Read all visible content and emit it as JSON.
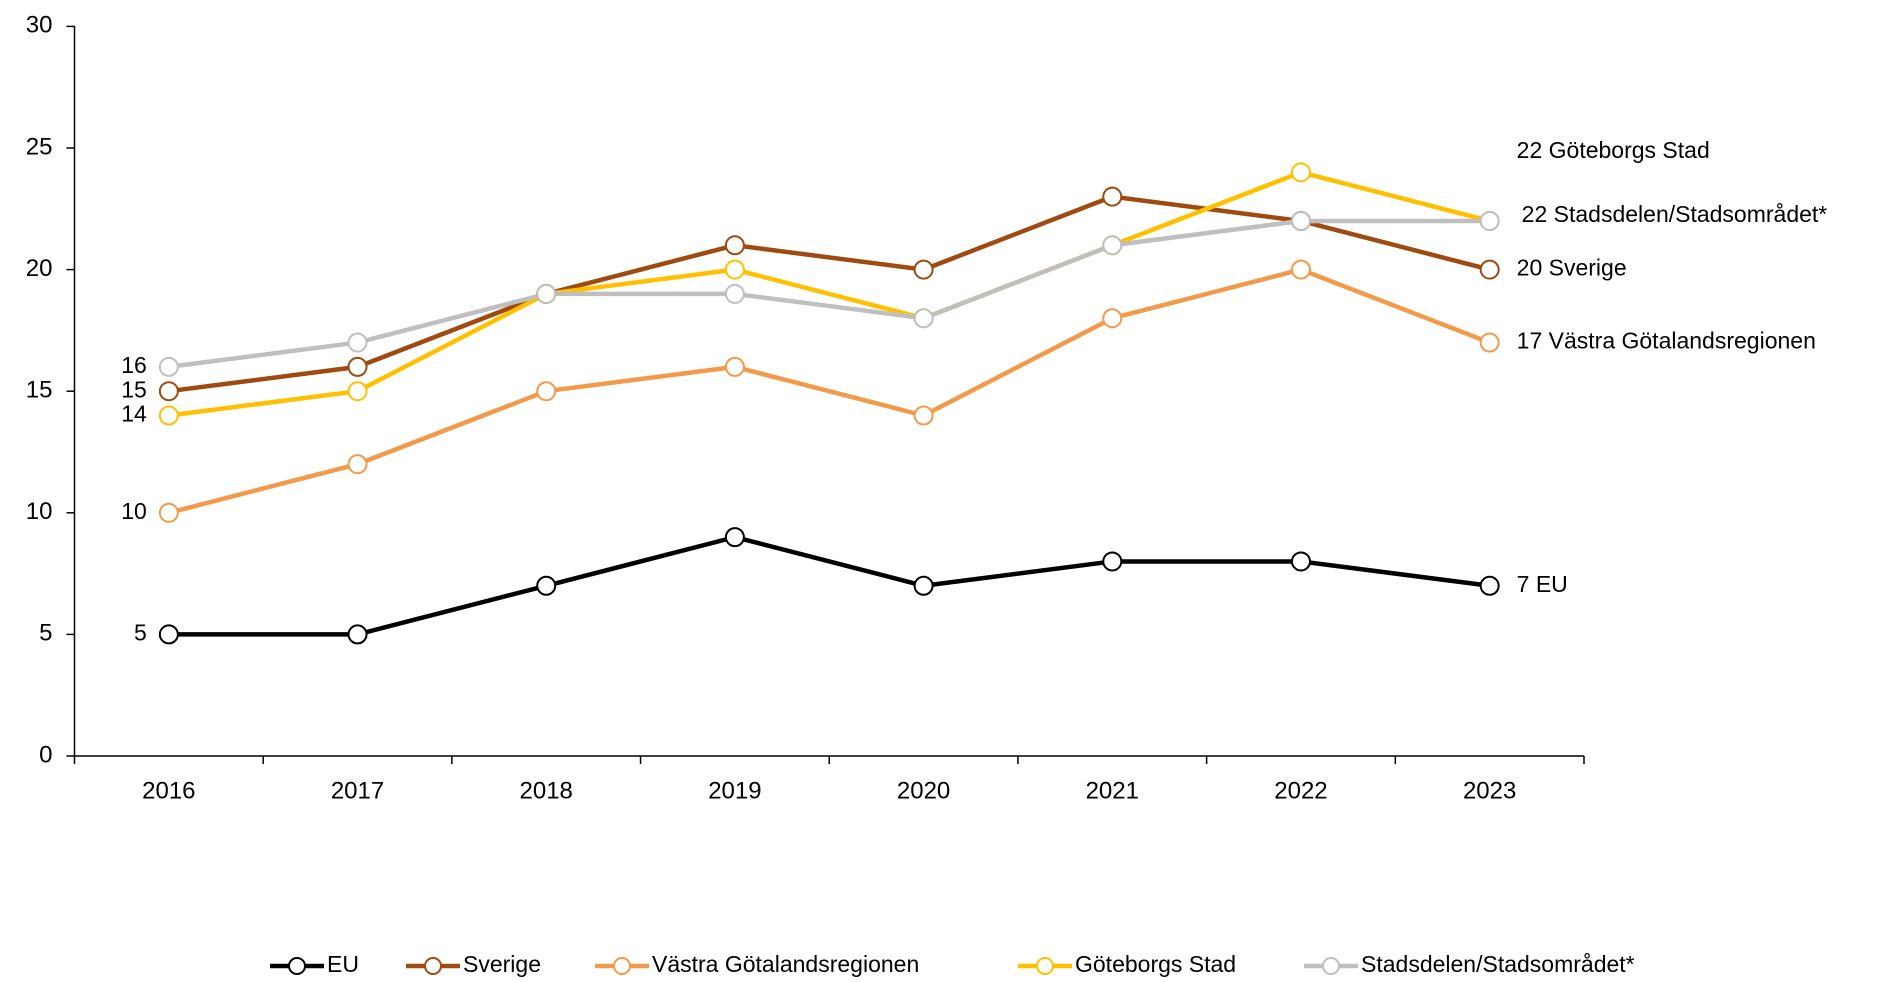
{
  "chart_data": {
    "type": "line",
    "categories": [
      "2016",
      "2017",
      "2018",
      "2019",
      "2020",
      "2021",
      "2022",
      "2023"
    ],
    "series": [
      {
        "name": "EU",
        "color": "#000000",
        "values": [
          5,
          5,
          7,
          9,
          7,
          8,
          8,
          7
        ]
      },
      {
        "name": "Sverige",
        "color": "#9e4a10",
        "values": [
          15,
          16,
          19,
          21,
          20,
          23,
          22,
          20
        ]
      },
      {
        "name": "Västra Götalandsregionen",
        "color": "#f29a4a",
        "values": [
          10,
          12,
          15,
          16,
          14,
          18,
          20,
          17
        ]
      },
      {
        "name": "Göteborgs Stad",
        "color": "#ffc000",
        "values": [
          14,
          15,
          19,
          20,
          18,
          21,
          24,
          22
        ]
      },
      {
        "name": "Stadsdelen/Stadsområdet*",
        "color": "#bfbfbf",
        "values": [
          16,
          17,
          19,
          19,
          18,
          21,
          22,
          22
        ]
      }
    ],
    "ylim": [
      0,
      30
    ],
    "yticks": [
      0,
      5,
      10,
      15,
      20,
      25,
      30
    ],
    "legend": "bottom"
  }
}
